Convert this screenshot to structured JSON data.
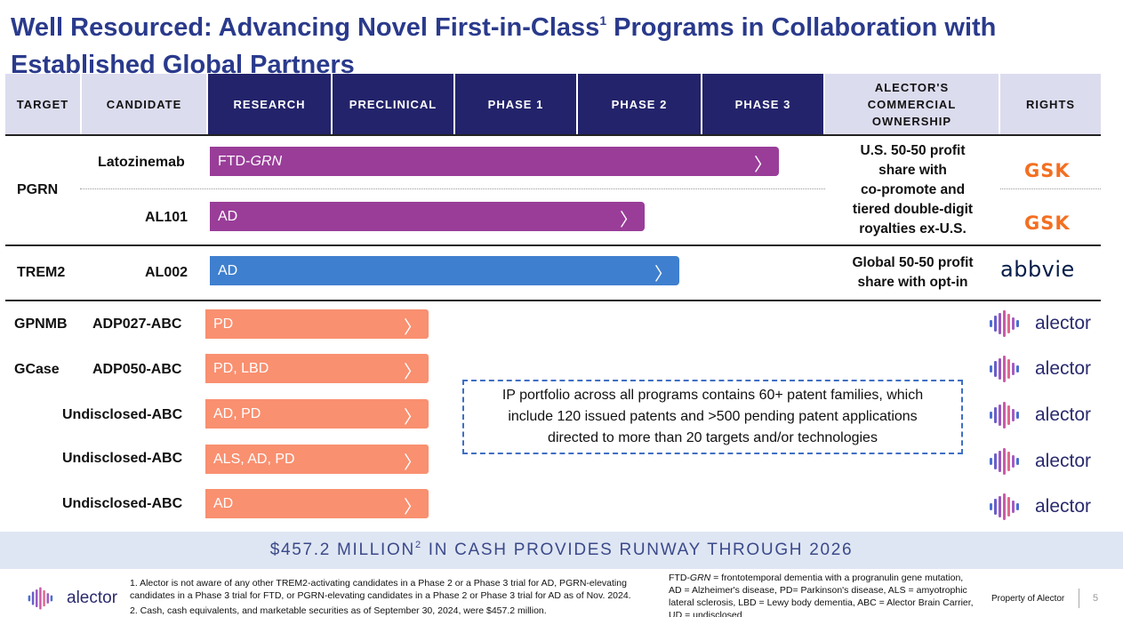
{
  "title": {
    "line1_a": "Well Resourced: Advancing Novel First-in-Class",
    "line1_sup": "1",
    "line1_b": " Programs in Collaboration with",
    "line2": "Established Global Partners"
  },
  "headers": {
    "target": "TARGET",
    "candidate": "CANDIDATE",
    "research": "RESEARCH",
    "preclinical": "PRECLINICAL",
    "phase1": "PHASE 1",
    "phase2": "PHASE 2",
    "phase3": "PHASE 3",
    "ownership_1": "ALECTOR'S",
    "ownership_2": "COMMERCIAL",
    "ownership_3": "OWNERSHIP",
    "rights": "RIGHTS"
  },
  "programs": {
    "pgrn": {
      "target": "PGRN",
      "latozinemab": {
        "candidate": "Latozinemab",
        "indication_a": "FTD-",
        "indication_b": "GRN",
        "partner": "GSK"
      },
      "al101": {
        "candidate": "AL101",
        "indication": "AD",
        "partner": "GSK"
      },
      "ownership": [
        "U.S. 50-50 profit",
        "share with",
        "co-promote and",
        "tiered double-digit",
        "royalties ex-U.S."
      ]
    },
    "trem2": {
      "target": "TREM2",
      "candidate": "AL002",
      "indication": "AD",
      "ownership": [
        "Global 50-50 profit",
        "share with opt-in"
      ],
      "partner": "abbvie"
    },
    "abc": [
      {
        "target": "GPNMB",
        "candidate": "ADP027-ABC",
        "indication": "PD",
        "partner": "alector"
      },
      {
        "target": "GCase",
        "candidate": "ADP050-ABC",
        "indication": "PD, LBD",
        "partner": "alector"
      },
      {
        "target": "",
        "candidate": "Undisclosed-ABC",
        "indication": "AD, PD",
        "partner": "alector"
      },
      {
        "target": "",
        "candidate": "Undisclosed-ABC",
        "indication": "ALS, AD, PD",
        "partner": "alector"
      },
      {
        "target": "",
        "candidate": "Undisclosed-ABC",
        "indication": "AD",
        "partner": "alector"
      }
    ]
  },
  "chevron": "〉",
  "ip_box": [
    "IP portfolio across all programs contains 60+ patent families, which",
    "include 120 issued patents and >500 pending patent applications",
    "directed to more than 20 targets and/or technologies"
  ],
  "cash": {
    "a": "$457.2 MILLION",
    "sup": "2",
    "b": " IN CASH PROVIDES RUNWAY THROUGH 2026"
  },
  "footnotes": {
    "fn1_a": "1. Alector is not aware of any other TREM2-activating candidates in a Phase 2 or a Phase 3 trial for AD, PGRN-elevating",
    "fn1_b": "candidates in a Phase 3 trial for FTD, or PGRN-elevating candidates in a Phase 2 or Phase 3 trial for AD as of Nov. 2024.",
    "fn2": "2. Cash, cash equivalents, and marketable securities as of September 30, 2024, were $457.2 million.",
    "abbr_1a": "FTD-",
    "abbr_1b": "GRN",
    "abbr_1c": " = frontotemporal dementia with a progranulin gene mutation,",
    "abbr_2": "AD = Alzheimer's disease, PD= Parkinson's disease, ALS = amyotrophic",
    "abbr_3": "lateral sclerosis, LBD = Lewy body dementia, ABC = Alector Brain Carrier,",
    "abbr_4": "UD = undisclosed"
  },
  "footer": {
    "logo": "alector",
    "property": "Property of Alector",
    "page": "5"
  },
  "colors": {
    "title": "#2a3a8c",
    "header_dark": "#23236b",
    "header_light": "#dcdcef",
    "purple": "#993d99",
    "blue": "#3f7fcf",
    "orange": "#f99070",
    "gsk": "#f36f21"
  }
}
